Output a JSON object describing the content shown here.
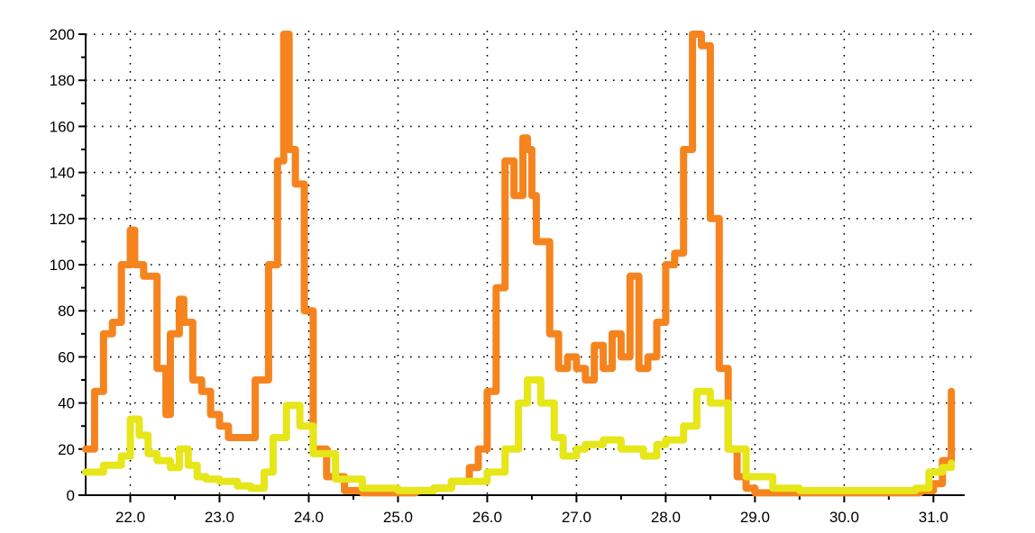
{
  "chart_data": {
    "type": "line",
    "title": "",
    "xlabel": "",
    "ylabel": "",
    "xlim": [
      21.5,
      31.35
    ],
    "ylim": [
      0,
      200
    ],
    "x_ticks": [
      22.0,
      23.0,
      24.0,
      25.0,
      26.0,
      27.0,
      28.0,
      29.0,
      30.0,
      31.0
    ],
    "x_tick_labels": [
      "22.0",
      "23.0",
      "24.0",
      "25.0",
      "26.0",
      "27.0",
      "28.0",
      "29.0",
      "30.0",
      "31.0"
    ],
    "y_ticks": [
      0,
      20,
      40,
      60,
      80,
      100,
      120,
      140,
      160,
      180,
      200
    ],
    "y_tick_labels": [
      "0",
      "20",
      "40",
      "60",
      "80",
      "100",
      "120",
      "140",
      "160",
      "180",
      "200"
    ],
    "grid": true,
    "legend": "none",
    "series": [
      {
        "color": "#f5841f",
        "x": [
          21.5,
          21.6,
          21.7,
          21.8,
          21.9,
          22.0,
          22.05,
          22.15,
          22.3,
          22.4,
          22.45,
          22.55,
          22.6,
          22.7,
          22.8,
          22.9,
          23.0,
          23.1,
          23.25,
          23.4,
          23.55,
          23.65,
          23.72,
          23.78,
          23.85,
          23.95,
          24.05,
          24.2,
          24.4,
          24.6,
          24.8,
          25.0,
          25.2,
          25.4,
          25.6,
          25.8,
          25.9,
          26.0,
          26.1,
          26.2,
          26.3,
          26.4,
          26.45,
          26.5,
          26.55,
          26.7,
          26.8,
          26.9,
          27.0,
          27.1,
          27.2,
          27.3,
          27.4,
          27.5,
          27.6,
          27.7,
          27.8,
          27.9,
          28.0,
          28.1,
          28.2,
          28.3,
          28.4,
          28.5,
          28.6,
          28.7,
          28.8,
          28.9,
          29.0,
          29.2,
          29.5,
          30.0,
          30.5,
          30.85,
          31.0,
          31.1,
          31.2
        ],
        "values": [
          20,
          45,
          70,
          75,
          100,
          115,
          100,
          95,
          55,
          35,
          70,
          85,
          75,
          50,
          45,
          35,
          30,
          25,
          25,
          50,
          100,
          145,
          200,
          150,
          135,
          80,
          20,
          8,
          2,
          1,
          1,
          1,
          2,
          3,
          6,
          12,
          20,
          45,
          90,
          145,
          130,
          155,
          150,
          130,
          110,
          70,
          55,
          60,
          55,
          50,
          65,
          55,
          70,
          60,
          95,
          55,
          60,
          75,
          100,
          105,
          150,
          200,
          195,
          120,
          55,
          20,
          8,
          3,
          1,
          1,
          1,
          1,
          1,
          2,
          5,
          15,
          45
        ]
      },
      {
        "color": "#e6e619",
        "x": [
          21.5,
          21.7,
          21.9,
          22.0,
          22.1,
          22.2,
          22.3,
          22.45,
          22.55,
          22.65,
          22.75,
          22.85,
          23.0,
          23.2,
          23.35,
          23.5,
          23.6,
          23.75,
          23.9,
          24.05,
          24.3,
          24.6,
          25.0,
          25.4,
          25.6,
          26.0,
          26.2,
          26.35,
          26.45,
          26.6,
          26.75,
          26.85,
          27.0,
          27.1,
          27.3,
          27.5,
          27.6,
          27.75,
          27.9,
          28.0,
          28.2,
          28.35,
          28.5,
          28.7,
          28.9,
          29.2,
          29.5,
          30.0,
          30.5,
          30.8,
          30.95,
          31.1,
          31.2
        ],
        "values": [
          10,
          13,
          17,
          33,
          26,
          18,
          15,
          12,
          20,
          13,
          8,
          7,
          6,
          4,
          3,
          10,
          25,
          39,
          30,
          18,
          7,
          3,
          2,
          3,
          6,
          10,
          20,
          40,
          50,
          40,
          25,
          17,
          20,
          22,
          24,
          20,
          20,
          17,
          22,
          24,
          30,
          45,
          40,
          20,
          8,
          3,
          2,
          2,
          2,
          3,
          10,
          12,
          14
        ]
      }
    ]
  }
}
